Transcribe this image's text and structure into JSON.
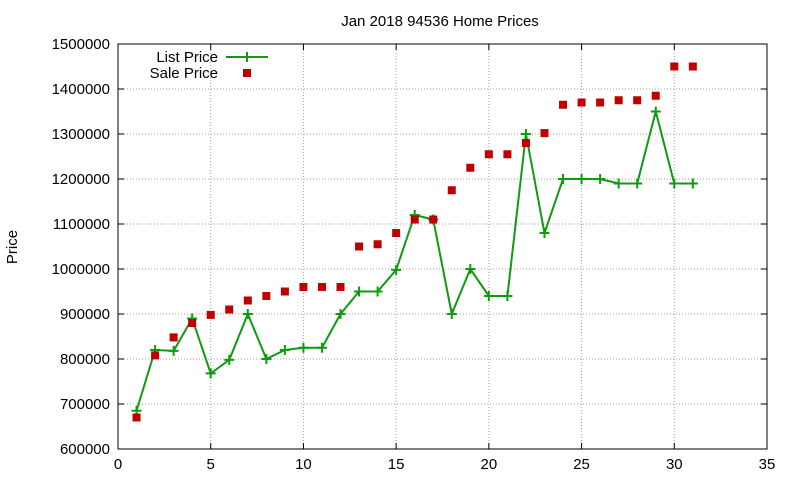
{
  "chart_data": {
    "type": "line",
    "title": "Jan 2018 94536 Home Prices",
    "xlabel": "",
    "ylabel": "Price",
    "xlim": [
      0,
      35
    ],
    "ylim": [
      600000,
      1500000
    ],
    "xticks": [
      0,
      5,
      10,
      15,
      20,
      25,
      30,
      35
    ],
    "yticks": [
      600000,
      700000,
      800000,
      900000,
      1000000,
      1100000,
      1200000,
      1300000,
      1400000,
      1500000
    ],
    "grid": true,
    "legend_position": "top-left",
    "series": [
      {
        "name": "List Price",
        "style": "line-plus",
        "color": "#109a10",
        "x": [
          1,
          2,
          3,
          4,
          5,
          6,
          7,
          8,
          9,
          10,
          11,
          12,
          13,
          14,
          15,
          16,
          17,
          18,
          19,
          20,
          21,
          22,
          23,
          24,
          25,
          26,
          27,
          28,
          29,
          30,
          31
        ],
        "y": [
          685000,
          820000,
          818000,
          890000,
          768000,
          798000,
          900000,
          800000,
          820000,
          825000,
          825000,
          900000,
          950000,
          950000,
          998000,
          1120000,
          1110000,
          900000,
          1000000,
          940000,
          940000,
          1300000,
          1080000,
          1200000,
          1200000,
          1200000,
          1190000,
          1190000,
          1350000,
          1190000,
          1190000
        ]
      },
      {
        "name": "Sale Price",
        "style": "square",
        "color": "#c00000",
        "x": [
          1,
          2,
          3,
          4,
          5,
          6,
          7,
          8,
          9,
          10,
          11,
          12,
          13,
          14,
          15,
          16,
          17,
          18,
          19,
          20,
          21,
          22,
          23,
          24,
          25,
          26,
          27,
          28,
          29,
          30,
          31
        ],
        "y": [
          670000,
          808000,
          848000,
          880000,
          898000,
          910000,
          930000,
          940000,
          950000,
          960000,
          960000,
          960000,
          1050000,
          1055000,
          1080000,
          1110000,
          1110000,
          1175000,
          1225000,
          1255000,
          1255000,
          1280000,
          1302000,
          1365000,
          1370000,
          1370000,
          1375000,
          1375000,
          1385000,
          1450000,
          1450000
        ]
      }
    ]
  }
}
